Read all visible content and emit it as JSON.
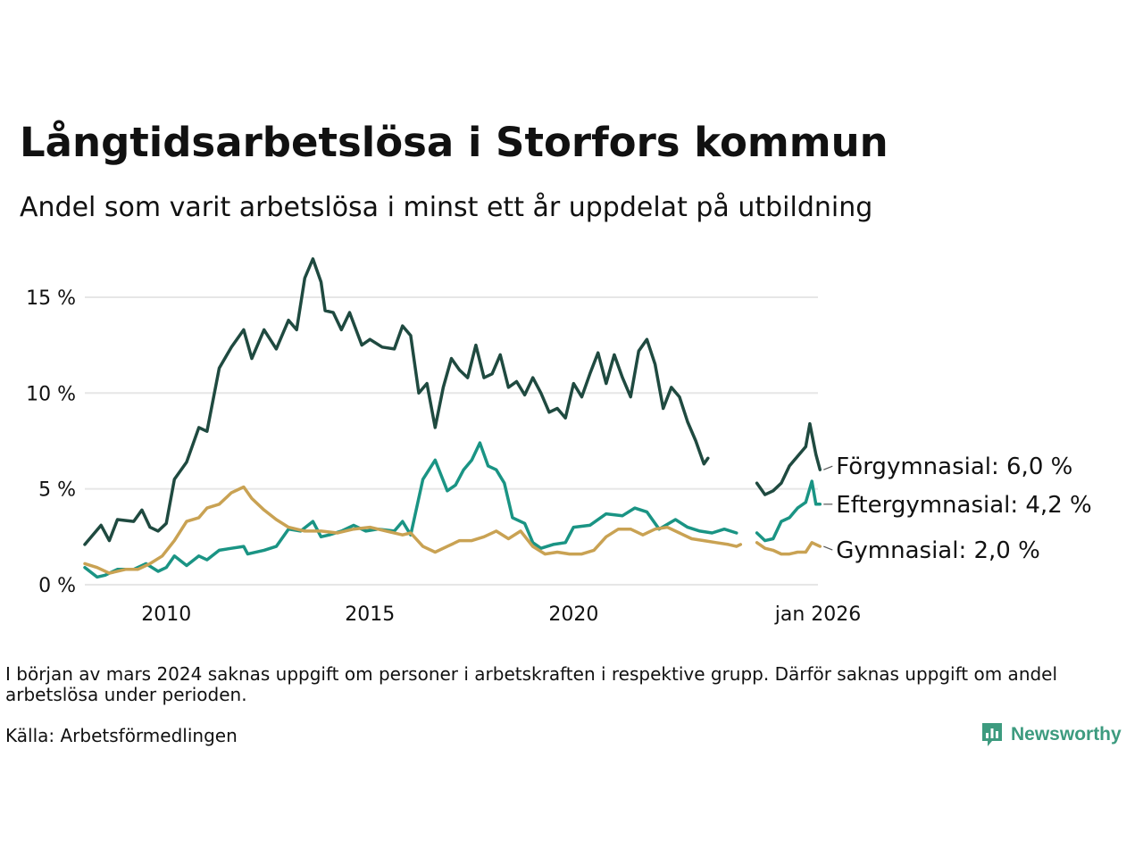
{
  "title": "Långtidsarbetslösa i Storfors kommun",
  "subtitle": "Andel som varit arbetslösa i minst ett år uppdelat på utbildning",
  "footnote": "I början av mars 2024 saknas uppgift om personer i arbetskraften i respektive grupp. Därför saknas uppgift om andel arbetslösa under perioden.",
  "source": "Källa: Arbetsförmedlingen",
  "brand": "Newsworthy",
  "colors": {
    "forgymnasial": "#1f4a40",
    "eftergymnasial": "#1a9484",
    "gymnasial": "#c9a253",
    "grid": "#e6e6e6",
    "brand": "#3d9b7f"
  },
  "chart_data": {
    "type": "line",
    "title": "Långtidsarbetslösa i Storfors kommun",
    "subtitle": "Andel som varit arbetslösa i minst ett år uppdelat på utbildning",
    "xlabel": "",
    "ylabel": "",
    "xlim": [
      2008.0,
      2026.0
    ],
    "ylim": [
      0,
      17
    ],
    "y_ticks": [
      0,
      5,
      10,
      15
    ],
    "y_tick_labels": [
      "0 %",
      "5 %",
      "10 %",
      "15 %"
    ],
    "x_ticks": [
      2010,
      2015,
      2020,
      2026
    ],
    "x_tick_labels": [
      "2010",
      "2015",
      "2020",
      "jan 2026"
    ],
    "grid": true,
    "gap": [
      2024.17,
      2024.5
    ],
    "series": [
      {
        "name": "Förgymnasial",
        "end_label": "Förgymnasial: 6,0 %",
        "color_key": "forgymnasial",
        "points": [
          [
            2008.0,
            2.1
          ],
          [
            2008.4,
            3.1
          ],
          [
            2008.6,
            2.3
          ],
          [
            2008.8,
            3.4
          ],
          [
            2009.2,
            3.3
          ],
          [
            2009.4,
            3.9
          ],
          [
            2009.6,
            3.0
          ],
          [
            2009.8,
            2.8
          ],
          [
            2010.0,
            3.2
          ],
          [
            2010.2,
            5.5
          ],
          [
            2010.5,
            6.4
          ],
          [
            2010.8,
            8.2
          ],
          [
            2011.0,
            8.0
          ],
          [
            2011.3,
            11.3
          ],
          [
            2011.6,
            12.4
          ],
          [
            2011.9,
            13.3
          ],
          [
            2012.1,
            11.8
          ],
          [
            2012.4,
            13.3
          ],
          [
            2012.7,
            12.3
          ],
          [
            2013.0,
            13.8
          ],
          [
            2013.2,
            13.3
          ],
          [
            2013.4,
            16.0
          ],
          [
            2013.6,
            17.0
          ],
          [
            2013.8,
            15.8
          ],
          [
            2013.9,
            14.3
          ],
          [
            2014.1,
            14.2
          ],
          [
            2014.3,
            13.3
          ],
          [
            2014.5,
            14.2
          ],
          [
            2014.8,
            12.5
          ],
          [
            2015.0,
            12.8
          ],
          [
            2015.3,
            12.4
          ],
          [
            2015.6,
            12.3
          ],
          [
            2015.8,
            13.5
          ],
          [
            2016.0,
            13.0
          ],
          [
            2016.2,
            10.0
          ],
          [
            2016.4,
            10.5
          ],
          [
            2016.6,
            8.2
          ],
          [
            2016.8,
            10.3
          ],
          [
            2017.0,
            11.8
          ],
          [
            2017.2,
            11.2
          ],
          [
            2017.4,
            10.8
          ],
          [
            2017.6,
            12.5
          ],
          [
            2017.8,
            10.8
          ],
          [
            2018.0,
            11.0
          ],
          [
            2018.2,
            12.0
          ],
          [
            2018.4,
            10.3
          ],
          [
            2018.6,
            10.6
          ],
          [
            2018.8,
            9.9
          ],
          [
            2019.0,
            10.8
          ],
          [
            2019.2,
            10.0
          ],
          [
            2019.4,
            9.0
          ],
          [
            2019.6,
            9.2
          ],
          [
            2019.8,
            8.7
          ],
          [
            2020.0,
            10.5
          ],
          [
            2020.2,
            9.8
          ],
          [
            2020.4,
            11.0
          ],
          [
            2020.6,
            12.1
          ],
          [
            2020.8,
            10.5
          ],
          [
            2021.0,
            12.0
          ],
          [
            2021.2,
            10.8
          ],
          [
            2021.4,
            9.8
          ],
          [
            2021.6,
            12.2
          ],
          [
            2021.8,
            12.8
          ],
          [
            2022.0,
            11.5
          ],
          [
            2022.2,
            9.2
          ],
          [
            2022.4,
            10.3
          ],
          [
            2022.6,
            9.8
          ],
          [
            2022.8,
            8.5
          ],
          [
            2023.0,
            7.5
          ],
          [
            2023.2,
            6.3
          ],
          [
            2023.3,
            6.6
          ],
          [
            2024.5,
            5.3
          ],
          [
            2024.7,
            4.7
          ],
          [
            2024.9,
            4.9
          ],
          [
            2025.1,
            5.3
          ],
          [
            2025.3,
            6.2
          ],
          [
            2025.5,
            6.7
          ],
          [
            2025.7,
            7.2
          ],
          [
            2025.8,
            8.4
          ],
          [
            2025.95,
            6.8
          ],
          [
            2026.05,
            6.0
          ]
        ]
      },
      {
        "name": "Eftergymnasial",
        "end_label": "Eftergymnasial: 4,2 %",
        "color_key": "eftergymnasial",
        "points": [
          [
            2008.0,
            0.9
          ],
          [
            2008.3,
            0.4
          ],
          [
            2008.5,
            0.5
          ],
          [
            2008.8,
            0.8
          ],
          [
            2009.2,
            0.8
          ],
          [
            2009.5,
            1.1
          ],
          [
            2009.8,
            0.7
          ],
          [
            2010.0,
            0.9
          ],
          [
            2010.2,
            1.5
          ],
          [
            2010.5,
            1.0
          ],
          [
            2010.8,
            1.5
          ],
          [
            2011.0,
            1.3
          ],
          [
            2011.3,
            1.8
          ],
          [
            2011.6,
            1.9
          ],
          [
            2011.9,
            2.0
          ],
          [
            2012.0,
            1.6
          ],
          [
            2012.4,
            1.8
          ],
          [
            2012.7,
            2.0
          ],
          [
            2013.0,
            2.9
          ],
          [
            2013.3,
            2.8
          ],
          [
            2013.6,
            3.3
          ],
          [
            2013.8,
            2.5
          ],
          [
            2014.0,
            2.6
          ],
          [
            2014.3,
            2.8
          ],
          [
            2014.6,
            3.1
          ],
          [
            2014.9,
            2.8
          ],
          [
            2015.2,
            2.9
          ],
          [
            2015.6,
            2.8
          ],
          [
            2015.8,
            3.3
          ],
          [
            2016.0,
            2.6
          ],
          [
            2016.3,
            5.5
          ],
          [
            2016.6,
            6.5
          ],
          [
            2016.9,
            4.9
          ],
          [
            2017.1,
            5.2
          ],
          [
            2017.3,
            6.0
          ],
          [
            2017.5,
            6.5
          ],
          [
            2017.7,
            7.4
          ],
          [
            2017.9,
            6.2
          ],
          [
            2018.1,
            6.0
          ],
          [
            2018.3,
            5.3
          ],
          [
            2018.5,
            3.5
          ],
          [
            2018.8,
            3.2
          ],
          [
            2019.0,
            2.2
          ],
          [
            2019.2,
            1.9
          ],
          [
            2019.5,
            2.1
          ],
          [
            2019.8,
            2.2
          ],
          [
            2020.0,
            3.0
          ],
          [
            2020.4,
            3.1
          ],
          [
            2020.8,
            3.7
          ],
          [
            2021.2,
            3.6
          ],
          [
            2021.5,
            4.0
          ],
          [
            2021.8,
            3.8
          ],
          [
            2022.1,
            2.9
          ],
          [
            2022.5,
            3.4
          ],
          [
            2022.8,
            3.0
          ],
          [
            2023.1,
            2.8
          ],
          [
            2023.4,
            2.7
          ],
          [
            2023.7,
            2.9
          ],
          [
            2024.0,
            2.7
          ],
          [
            2024.5,
            2.7
          ],
          [
            2024.7,
            2.3
          ],
          [
            2024.9,
            2.4
          ],
          [
            2025.1,
            3.3
          ],
          [
            2025.3,
            3.5
          ],
          [
            2025.5,
            4.0
          ],
          [
            2025.7,
            4.3
          ],
          [
            2025.85,
            5.4
          ],
          [
            2025.95,
            4.2
          ],
          [
            2026.05,
            4.2
          ]
        ]
      },
      {
        "name": "Gymnasial",
        "end_label": "Gymnasial: 2,0 %",
        "color_key": "gymnasial",
        "points": [
          [
            2008.0,
            1.1
          ],
          [
            2008.3,
            0.9
          ],
          [
            2008.6,
            0.6
          ],
          [
            2009.0,
            0.8
          ],
          [
            2009.3,
            0.8
          ],
          [
            2009.6,
            1.1
          ],
          [
            2009.9,
            1.5
          ],
          [
            2010.2,
            2.3
          ],
          [
            2010.5,
            3.3
          ],
          [
            2010.8,
            3.5
          ],
          [
            2011.0,
            4.0
          ],
          [
            2011.3,
            4.2
          ],
          [
            2011.6,
            4.8
          ],
          [
            2011.9,
            5.1
          ],
          [
            2012.1,
            4.5
          ],
          [
            2012.4,
            3.9
          ],
          [
            2012.7,
            3.4
          ],
          [
            2013.0,
            3.0
          ],
          [
            2013.4,
            2.8
          ],
          [
            2013.8,
            2.8
          ],
          [
            2014.2,
            2.7
          ],
          [
            2014.6,
            2.9
          ],
          [
            2015.0,
            3.0
          ],
          [
            2015.4,
            2.8
          ],
          [
            2015.8,
            2.6
          ],
          [
            2016.0,
            2.7
          ],
          [
            2016.3,
            2.0
          ],
          [
            2016.6,
            1.7
          ],
          [
            2016.9,
            2.0
          ],
          [
            2017.2,
            2.3
          ],
          [
            2017.5,
            2.3
          ],
          [
            2017.8,
            2.5
          ],
          [
            2018.1,
            2.8
          ],
          [
            2018.4,
            2.4
          ],
          [
            2018.7,
            2.8
          ],
          [
            2019.0,
            2.0
          ],
          [
            2019.3,
            1.6
          ],
          [
            2019.6,
            1.7
          ],
          [
            2019.9,
            1.6
          ],
          [
            2020.2,
            1.6
          ],
          [
            2020.5,
            1.8
          ],
          [
            2020.8,
            2.5
          ],
          [
            2021.1,
            2.9
          ],
          [
            2021.4,
            2.9
          ],
          [
            2021.7,
            2.6
          ],
          [
            2022.0,
            2.9
          ],
          [
            2022.3,
            3.0
          ],
          [
            2022.6,
            2.7
          ],
          [
            2022.9,
            2.4
          ],
          [
            2023.2,
            2.3
          ],
          [
            2023.5,
            2.2
          ],
          [
            2023.8,
            2.1
          ],
          [
            2024.0,
            2.0
          ],
          [
            2024.1,
            2.1
          ],
          [
            2024.5,
            2.2
          ],
          [
            2024.7,
            1.9
          ],
          [
            2024.9,
            1.8
          ],
          [
            2025.1,
            1.6
          ],
          [
            2025.3,
            1.6
          ],
          [
            2025.5,
            1.7
          ],
          [
            2025.7,
            1.7
          ],
          [
            2025.85,
            2.2
          ],
          [
            2026.05,
            2.0
          ]
        ]
      }
    ]
  }
}
